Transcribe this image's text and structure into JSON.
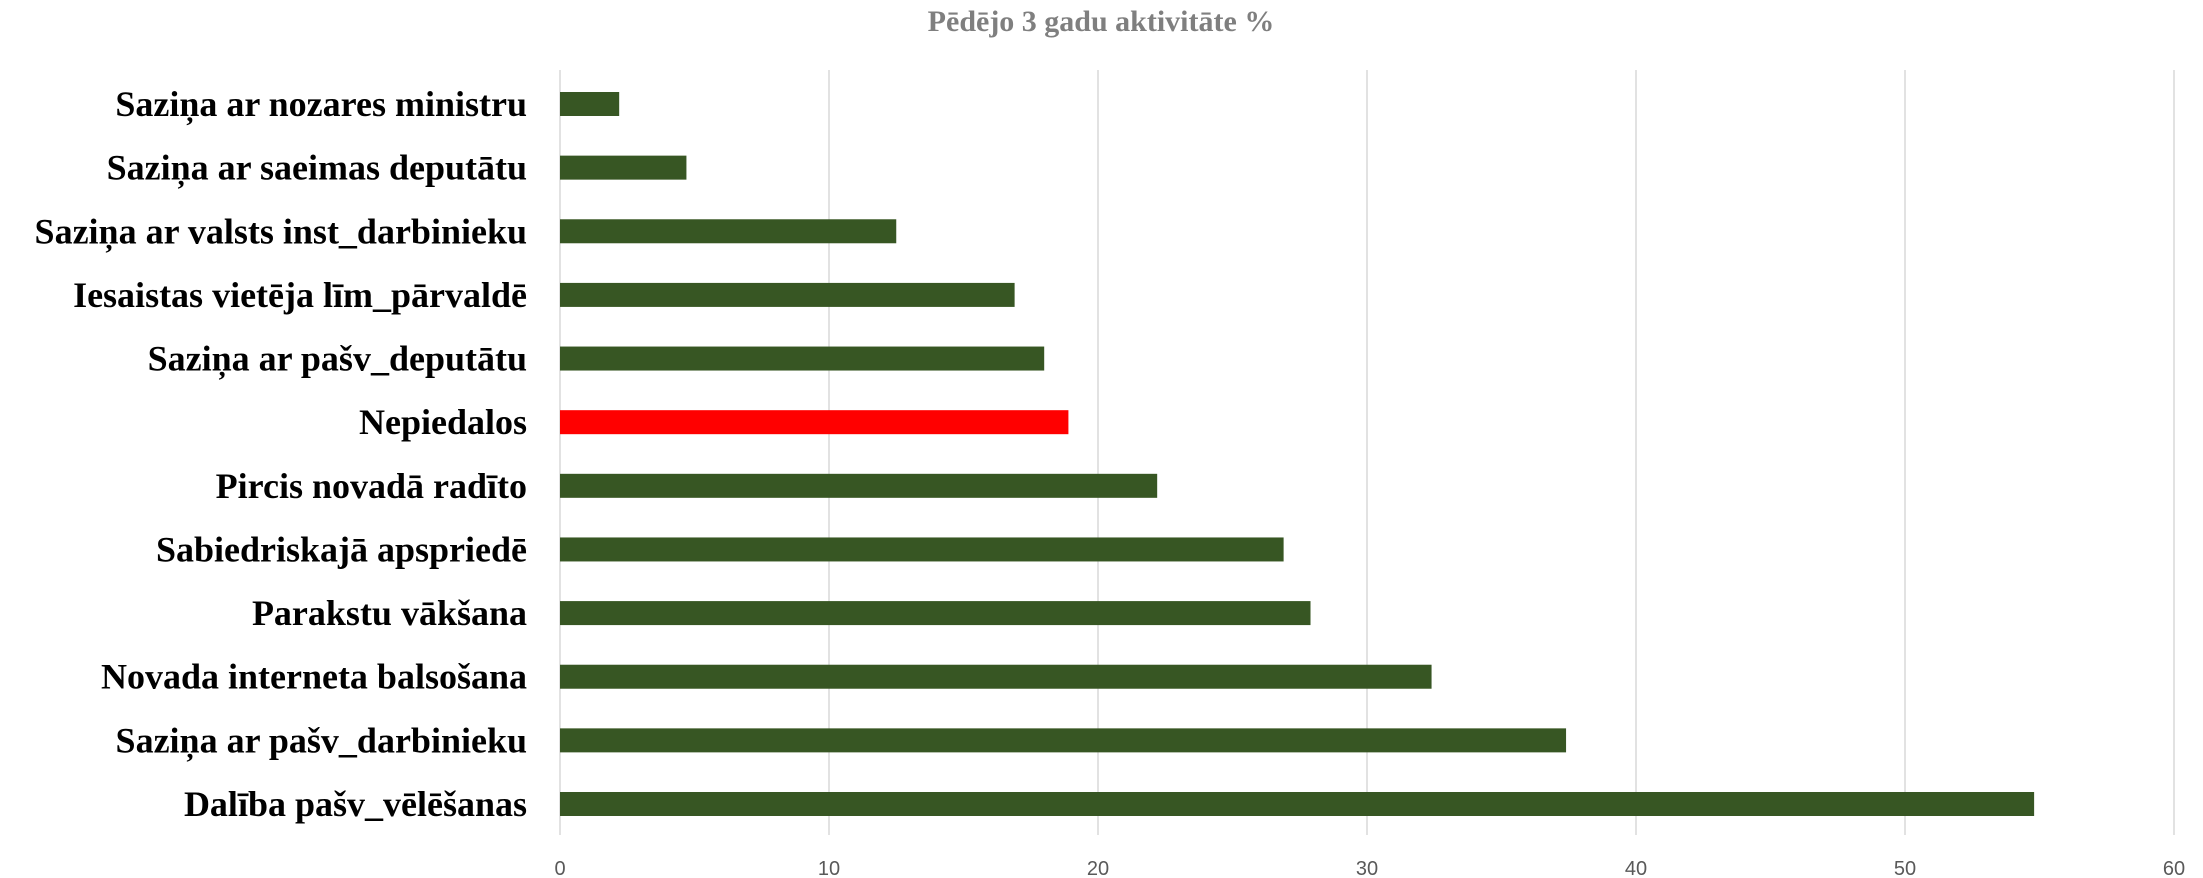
{
  "chart_data": {
    "type": "bar",
    "orientation": "horizontal",
    "title": "Pēdējo 3 gadu aktivitāte %",
    "xlabel": "",
    "ylabel": "",
    "xlim": [
      0,
      60
    ],
    "ticks": [
      0,
      10,
      20,
      30,
      40,
      50,
      60
    ],
    "grid": "vertical",
    "legend": "none",
    "categories": [
      "Saziņa ar nozares ministru",
      "Saziņa ar saeimas deputātu",
      "Saziņa ar valsts inst_darbinieku",
      "Iesaistas vietēja līm_pārvaldē",
      "Saziņa ar pašv_deputātu",
      "Nepiedalos",
      "Pircis novadā radīto ",
      "Sabiedriskajā apspriedē",
      "Parakstu vākšana",
      "Novada interneta balsošana",
      "Saziņa ar pašv_darbinieku",
      "Dalība pašv_vēlēšanas"
    ],
    "values": [
      2.2,
      4.7,
      12.5,
      16.9,
      18.0,
      18.9,
      22.2,
      26.9,
      27.9,
      32.4,
      37.4,
      54.8
    ],
    "colors": {
      "default": "#375623",
      "highlight": "#ff0000"
    },
    "highlight_category": "Nepiedalos"
  }
}
